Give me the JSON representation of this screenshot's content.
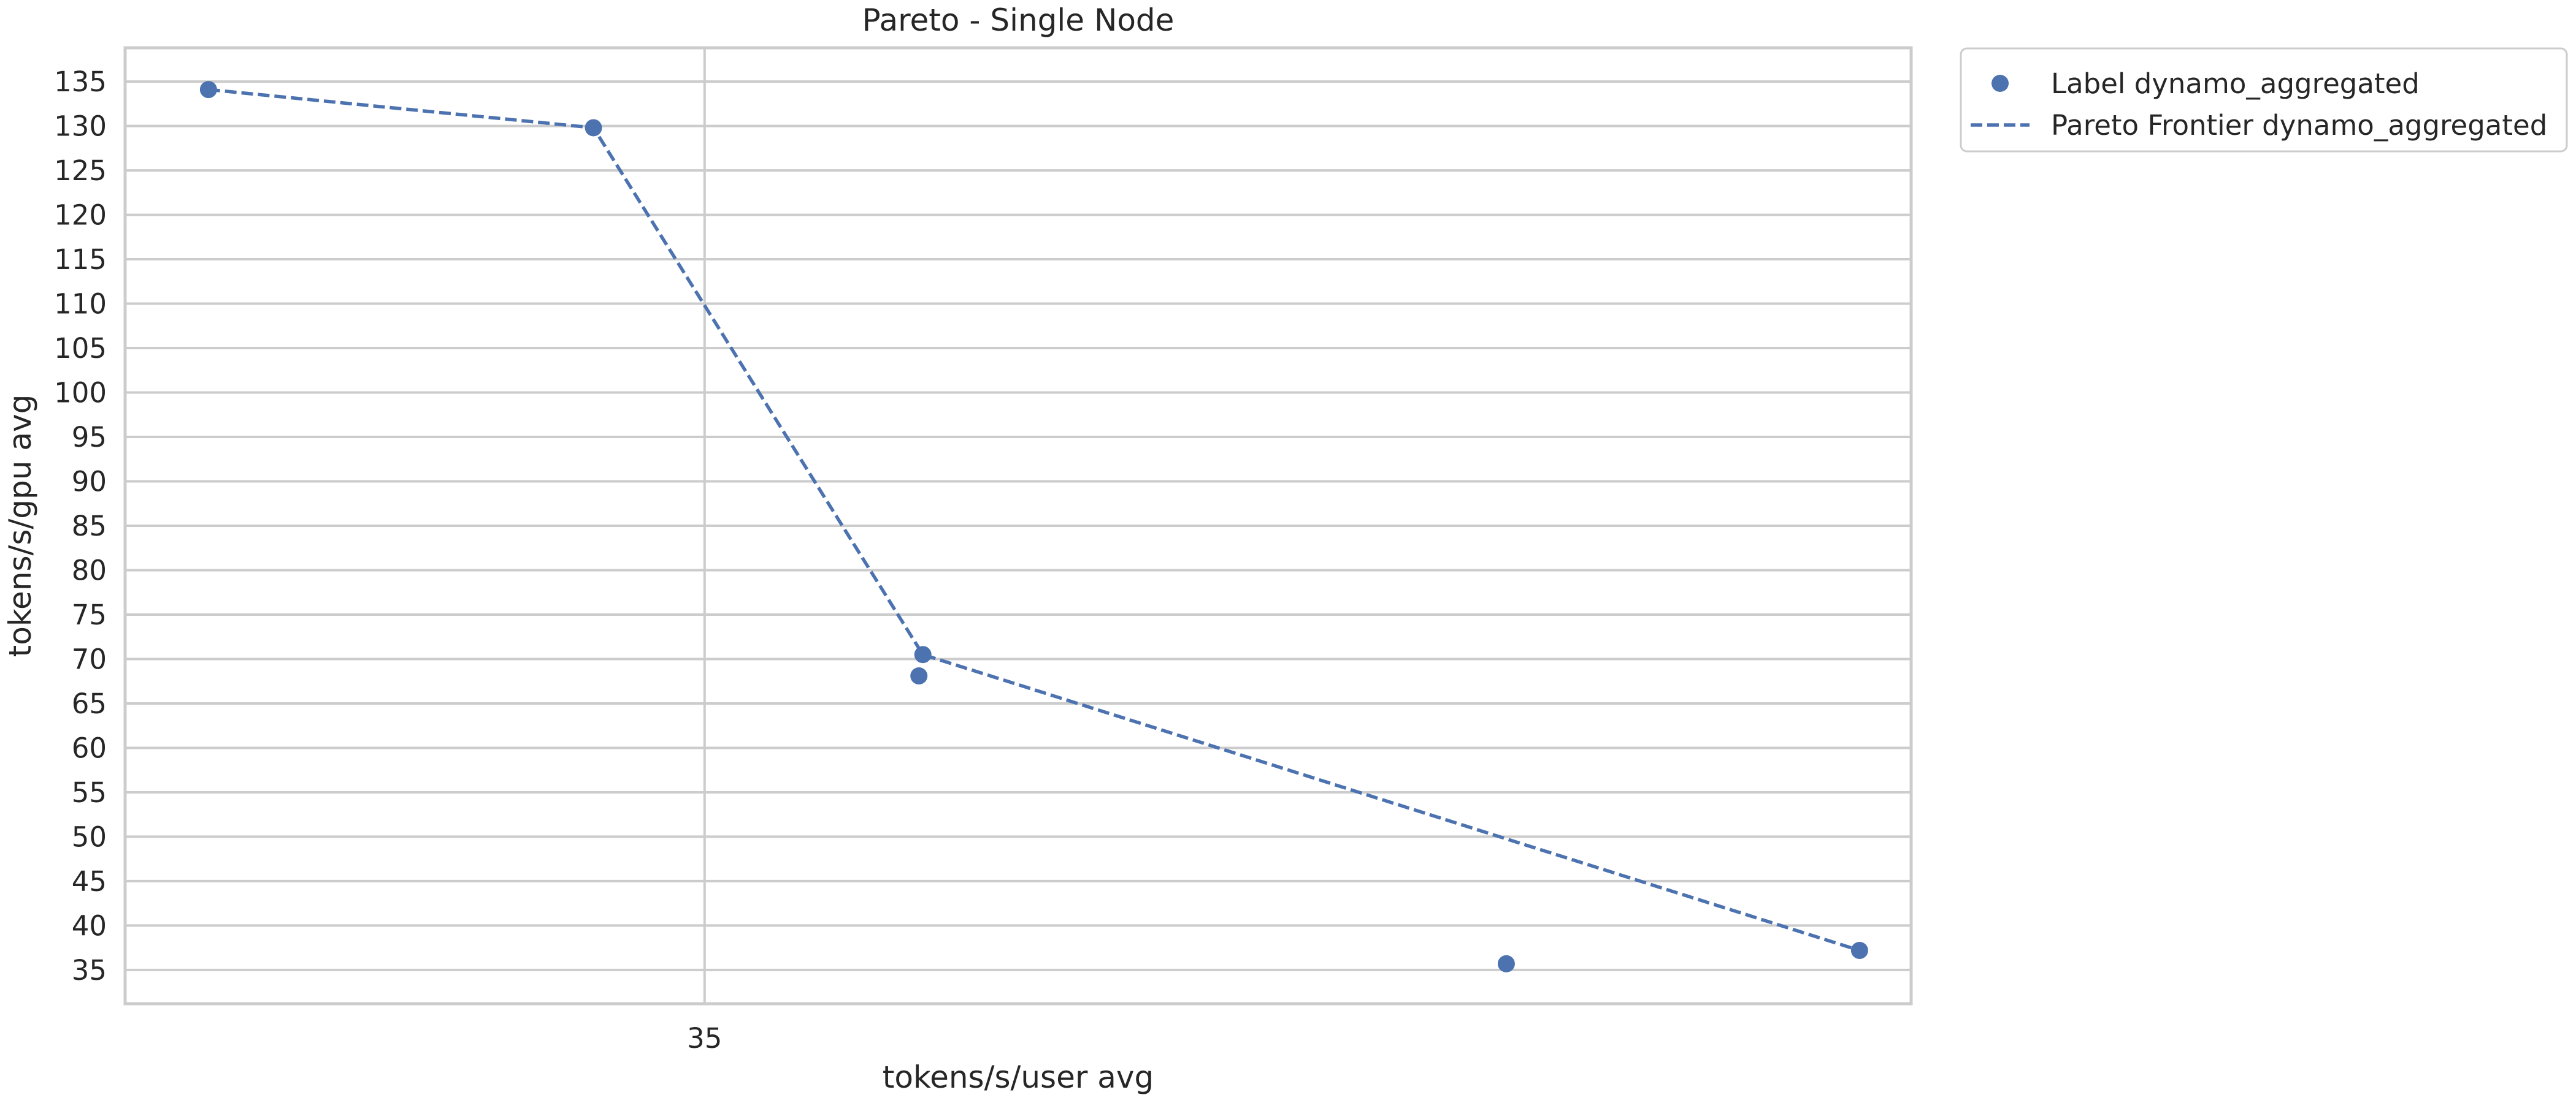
{
  "colors": {
    "series": "#4c72b0",
    "grid": "#cccccc",
    "text": "#262626"
  },
  "chart_data": {
    "type": "scatter",
    "title": "Pareto - Single Node",
    "xlabel": "tokens/s/user avg",
    "ylabel": "tokens/s/gpu avg",
    "xlim": [
      20.4,
      65.4
    ],
    "ylim": [
      31.2,
      138.8
    ],
    "x_ticks": [
      35
    ],
    "y_ticks": [
      35,
      40,
      45,
      50,
      55,
      60,
      65,
      70,
      75,
      80,
      85,
      90,
      95,
      100,
      105,
      110,
      115,
      120,
      125,
      130,
      135
    ],
    "grid": true,
    "legend_position": "outside-top-right",
    "series": [
      {
        "name": "Label dynamo_aggregated",
        "kind": "scatter",
        "points": [
          {
            "x": 22.5,
            "y": 134.1
          },
          {
            "x": 32.2,
            "y": 129.8
          },
          {
            "x": 40.5,
            "y": 70.5
          },
          {
            "x": 40.4,
            "y": 68.1
          },
          {
            "x": 55.2,
            "y": 35.7
          },
          {
            "x": 64.1,
            "y": 37.2
          }
        ]
      },
      {
        "name": "Pareto Frontier dynamo_aggregated",
        "kind": "line",
        "style": "dashed",
        "points": [
          {
            "x": 22.5,
            "y": 134.1
          },
          {
            "x": 32.2,
            "y": 129.8
          },
          {
            "x": 40.5,
            "y": 70.5
          },
          {
            "x": 64.1,
            "y": 37.2
          }
        ]
      }
    ]
  }
}
